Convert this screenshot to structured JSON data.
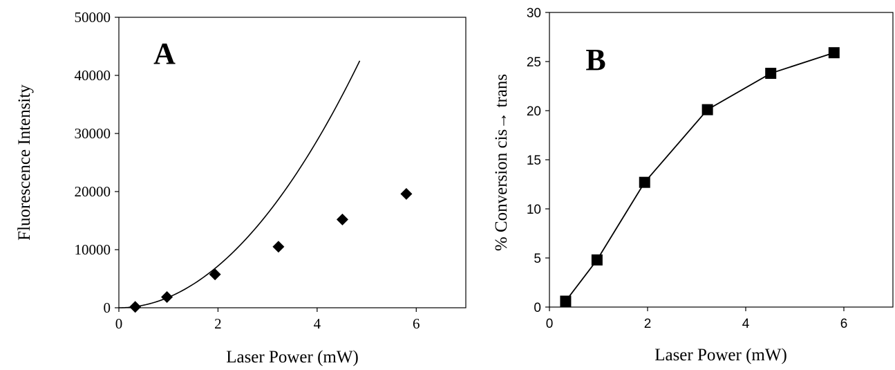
{
  "chart_data": [
    {
      "type": "scatter",
      "panel_label": "A",
      "xlabel": "Laser Power (mW)",
      "ylabel": "Fluorescence Intensity",
      "xlim": [
        0,
        7
      ],
      "ylim": [
        0,
        50000
      ],
      "xticks": [
        "0",
        "2",
        "4",
        "6"
      ],
      "yticks": [
        "0",
        "10000",
        "20000",
        "30000",
        "40000",
        "50000"
      ],
      "grid": false,
      "legend": "none",
      "series": [
        {
          "marker": "diamond",
          "color": "#000000",
          "x": [
            0.33,
            0.97,
            1.94,
            3.22,
            4.51,
            5.8
          ],
          "y": [
            150,
            1850,
            5750,
            10500,
            15200,
            19600
          ]
        }
      ],
      "curve": {
        "kind": "quadratic fit",
        "color": "#000000",
        "x_end": 4.86,
        "y_at_x1": 1800
      }
    },
    {
      "type": "line",
      "panel_label": "B",
      "xlabel": "Laser Power (mW)",
      "ylabel": "% Conversion cis→ trans",
      "xlim": [
        0,
        7
      ],
      "ylim": [
        0,
        30
      ],
      "xticks": [
        "0",
        "2",
        "4",
        "6"
      ],
      "yticks": [
        "0",
        "5",
        "10",
        "15",
        "20",
        "25",
        "30"
      ],
      "grid": false,
      "legend": "none",
      "series": [
        {
          "marker": "square",
          "color": "#000000",
          "x": [
            0.33,
            0.97,
            1.94,
            3.22,
            4.51,
            5.8
          ],
          "y": [
            0.6,
            4.8,
            12.7,
            20.1,
            23.8,
            25.9
          ]
        }
      ]
    }
  ]
}
